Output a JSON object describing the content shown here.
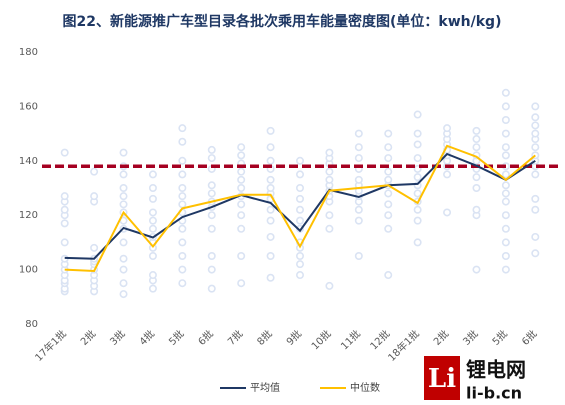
{
  "chart_data": {
    "type": "line",
    "title": "图22、新能源推广车型目录各批次乘用车能量密度图(单位：kwh/kg)",
    "categories": [
      "17年1批",
      "2批",
      "3批",
      "4批",
      "5批",
      "6批",
      "7批",
      "8批",
      "9批",
      "10批",
      "11批",
      "12批",
      "18年1批",
      "2批",
      "3批",
      "5批",
      "6批"
    ],
    "series": [
      {
        "name": "平均值",
        "color": "#1f3864",
        "values": [
          104.3,
          104,
          115.3,
          111.8,
          119.3,
          123,
          127.4,
          124.5,
          114.3,
          129.3,
          126.7,
          131,
          131.5,
          142.5,
          138.2,
          133,
          140
        ]
      },
      {
        "name": "中位数",
        "color": "#ffc000",
        "values": [
          100,
          99.5,
          121,
          108.5,
          122.5,
          125,
          127.5,
          127.5,
          108.5,
          129,
          130,
          131,
          124.5,
          145.5,
          141.5,
          133,
          142
        ]
      }
    ],
    "scatter": {
      "color": "#dae3f3",
      "values": [
        [
          92,
          93,
          95,
          96,
          98,
          100,
          102,
          104,
          110,
          117,
          120,
          122,
          125,
          127,
          143
        ],
        [
          92,
          94,
          96,
          98,
          100,
          102,
          103,
          104,
          108,
          125,
          127,
          136
        ],
        [
          91,
          95,
          100,
          104,
          110,
          115,
          118,
          121,
          124,
          127,
          130,
          135,
          138,
          143
        ],
        [
          93,
          96,
          98,
          105,
          108,
          110,
          112,
          115,
          118,
          121,
          126,
          130,
          135
        ],
        [
          95,
          100,
          105,
          110,
          115,
          118,
          121,
          124,
          127,
          130,
          135,
          140,
          147,
          152
        ],
        [
          93,
          100,
          105,
          115,
          120,
          123,
          125,
          128,
          131,
          137,
          141,
          144
        ],
        [
          95,
          105,
          115,
          120,
          124,
          127,
          130,
          133,
          136,
          139,
          142,
          145
        ],
        [
          97,
          105,
          112,
          118,
          122,
          126,
          128,
          130,
          133,
          137,
          140,
          145,
          151
        ],
        [
          98,
          102,
          105,
          108,
          110,
          115,
          118,
          122,
          126,
          130,
          135,
          140
        ],
        [
          94,
          115,
          120,
          125,
          127,
          129,
          131,
          133,
          136,
          139,
          141,
          143
        ],
        [
          105,
          118,
          122,
          125,
          127,
          129,
          131,
          133,
          137,
          141,
          145,
          150
        ],
        [
          98,
          115,
          120,
          124,
          128,
          131,
          133,
          136,
          141,
          145,
          150
        ],
        [
          110,
          118,
          122,
          125,
          128,
          131,
          134,
          137,
          141,
          146,
          150,
          157
        ],
        [
          121,
          135,
          138,
          140,
          142,
          144,
          146,
          148,
          150,
          152
        ],
        [
          100,
          120,
          122,
          130,
          134,
          137,
          140,
          142,
          145,
          148,
          151
        ],
        [
          100,
          105,
          110,
          115,
          120,
          125,
          128,
          131,
          135,
          138,
          142,
          145,
          150,
          155,
          160,
          165
        ],
        [
          106,
          112,
          122,
          126,
          135,
          138,
          140,
          142,
          145,
          148,
          150,
          153,
          156,
          160
        ]
      ]
    },
    "reference_line": {
      "value": 138,
      "color": "#a50021",
      "dashed": true
    },
    "ylim": [
      80,
      180
    ],
    "yticks": [
      80,
      100,
      120,
      140,
      160,
      180
    ],
    "grid": false,
    "legend": "bottom",
    "watermark": {
      "logo": "Li",
      "name": "锂电网",
      "site": "li-b.cn"
    }
  }
}
